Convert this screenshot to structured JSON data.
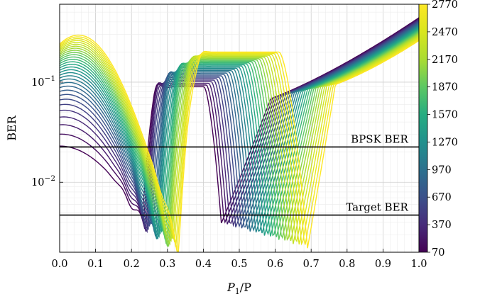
{
  "chart_data": {
    "type": "line",
    "xlabel": "P_1/P",
    "ylabel": "BER",
    "xlim": [
      0,
      1
    ],
    "ylim": [
      0.002,
      0.6
    ],
    "yscale": "log",
    "x_ticks": [
      "0.0",
      "0.1",
      "0.2",
      "0.3",
      "0.4",
      "0.5",
      "0.6",
      "0.7",
      "0.8",
      "0.9",
      "1.0"
    ],
    "y_ticks": [
      {
        "label_base": "10",
        "label_exp": "−2",
        "value": 0.01
      },
      {
        "label_base": "10",
        "label_exp": "−1",
        "value": 0.1
      }
    ],
    "grid": "major and minor",
    "colormap": "viridis",
    "colorbar": {
      "min": 70,
      "max": 2770,
      "ticks": [
        "70",
        "370",
        "670",
        "970",
        "1270",
        "1570",
        "1870",
        "2170",
        "2470",
        "2770"
      ]
    },
    "series_param_range": [
      70,
      2770
    ],
    "series_param_step": 90,
    "reference_lines": [
      {
        "label": "BPSK BER",
        "value": 0.0225,
        "color": "#000000"
      },
      {
        "label": "Target BER",
        "value": 0.0047,
        "color": "#000000"
      }
    ],
    "curve_shape": {
      "ber_at_x0_low_param": 0.023,
      "ber_at_x0_high_param": 0.24,
      "ber_at_x1_low_param": 0.44,
      "ber_at_x1_high_param": 0.26,
      "first_dip_position_low_param": 0.23,
      "first_dip_position_high_param": 0.33,
      "second_dip_position_low_param": 0.45,
      "second_dip_position_high_param": 0.69,
      "minimum_ber": 0.0022,
      "plateau_ber_peak": 0.2
    }
  }
}
